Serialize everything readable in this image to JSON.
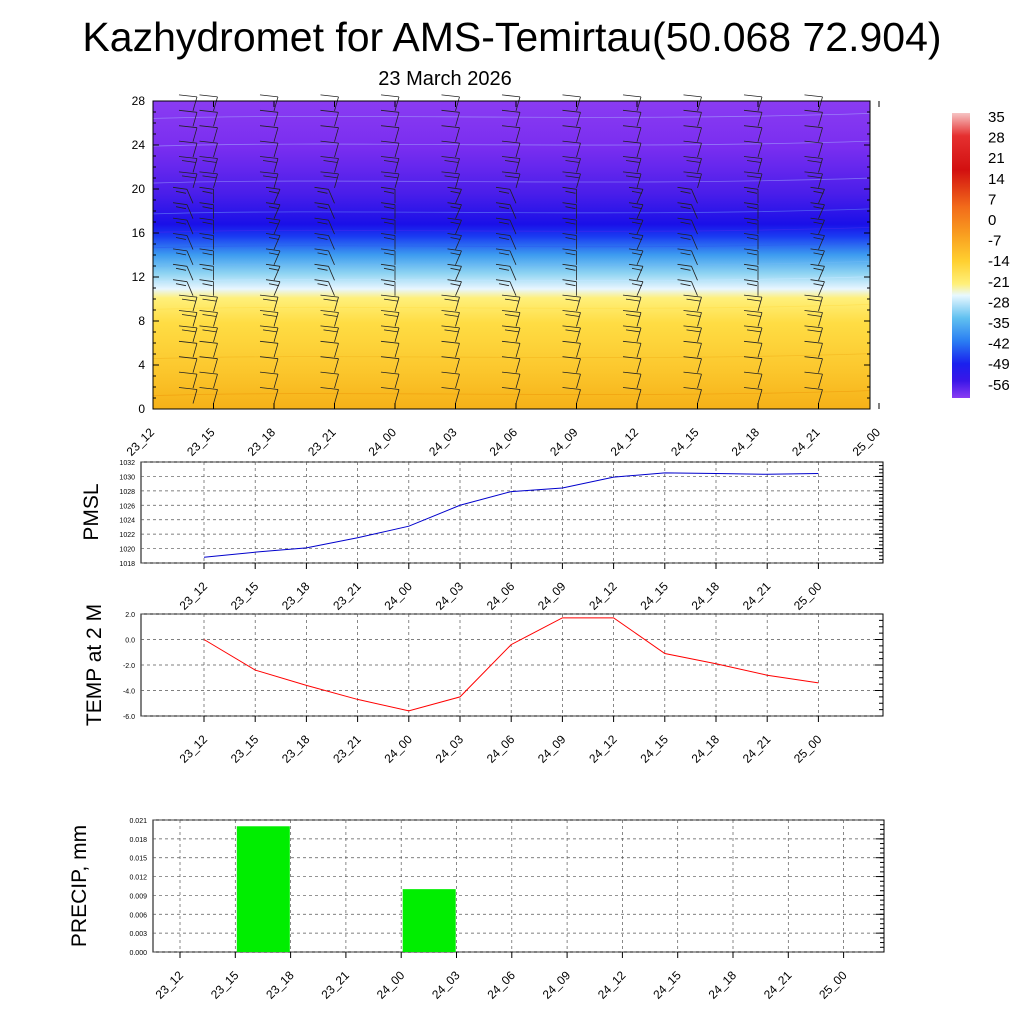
{
  "title": "Kazhydromet for AMS-Temirtau(50.068 72.904)",
  "subtitle": "23 March 2026",
  "chart_data": [
    {
      "type": "heatmap",
      "name": "temperature-wind cross section",
      "xlabel": "",
      "ylabel": "",
      "categories": [
        "23_12",
        "23_15",
        "23_18",
        "23_21",
        "24_00",
        "24_03",
        "24_06",
        "24_09",
        "24_12",
        "24_15",
        "24_18",
        "24_21",
        "25_00"
      ],
      "ylim": [
        0,
        28
      ],
      "yticks": [
        "0",
        "4",
        "8",
        "12",
        "16",
        "20",
        "24",
        "28"
      ],
      "colorbar": {
        "labels": [
          "35",
          "28",
          "21",
          "14",
          "7",
          "0",
          "-7",
          "-14",
          "-21",
          "-28",
          "-35",
          "-42",
          "-49",
          "-56"
        ],
        "range": [
          -60,
          38
        ]
      },
      "note": "filled temperature field with wind barbs; warm (yellow/orange) below ~11, cold (blue/purple) above ~16"
    },
    {
      "type": "line",
      "name": "PMSL",
      "ylabel": "PMSL",
      "categories": [
        "23_12",
        "23_15",
        "23_18",
        "23_21",
        "24_00",
        "24_03",
        "24_06",
        "24_09",
        "24_12",
        "24_15",
        "24_18",
        "24_21",
        "25_00"
      ],
      "ylim": [
        1018,
        1032
      ],
      "yticks": [
        "1018",
        "1020",
        "1022",
        "1024",
        "1026",
        "1028",
        "1030",
        "1032"
      ],
      "color": "#0000cc",
      "values": [
        1018.8,
        1019.5,
        1020.1,
        1021.5,
        1023.1,
        1026.0,
        1027.9,
        1028.4,
        1029.9,
        1030.5,
        1030.4,
        1030.3,
        1030.4
      ]
    },
    {
      "type": "line",
      "name": "TEMP at 2 M",
      "ylabel": "TEMP at 2 M",
      "categories": [
        "23_12",
        "23_15",
        "23_18",
        "23_21",
        "24_00",
        "24_03",
        "24_06",
        "24_09",
        "24_12",
        "24_15",
        "24_18",
        "24_21",
        "25_00"
      ],
      "ylim": [
        -6,
        2
      ],
      "yticks": [
        "-6.0",
        "-4.0",
        "-2.0",
        "0.0",
        "2.0"
      ],
      "color": "#ff0000",
      "values": [
        0.0,
        -2.4,
        -3.6,
        -4.7,
        -5.6,
        -4.5,
        -0.4,
        1.7,
        1.7,
        -1.1,
        -1.9,
        -2.8,
        -3.4
      ]
    },
    {
      "type": "bar",
      "name": "PRECIP, mm",
      "ylabel": "PRECIP, mm",
      "categories": [
        "23_12",
        "23_15",
        "23_18",
        "23_21",
        "24_00",
        "24_03",
        "24_06",
        "24_09",
        "24_12",
        "24_15",
        "24_18",
        "24_21",
        "25_00"
      ],
      "ylim": [
        0,
        0.021
      ],
      "yticks": [
        "0.000",
        "0.003",
        "0.006",
        "0.009",
        "0.012",
        "0.015",
        "0.018",
        "0.021"
      ],
      "color": "#00ee00",
      "values": [
        0,
        0.02,
        0,
        0,
        0.01,
        0,
        0,
        0,
        0,
        0,
        0,
        0,
        0
      ]
    }
  ]
}
